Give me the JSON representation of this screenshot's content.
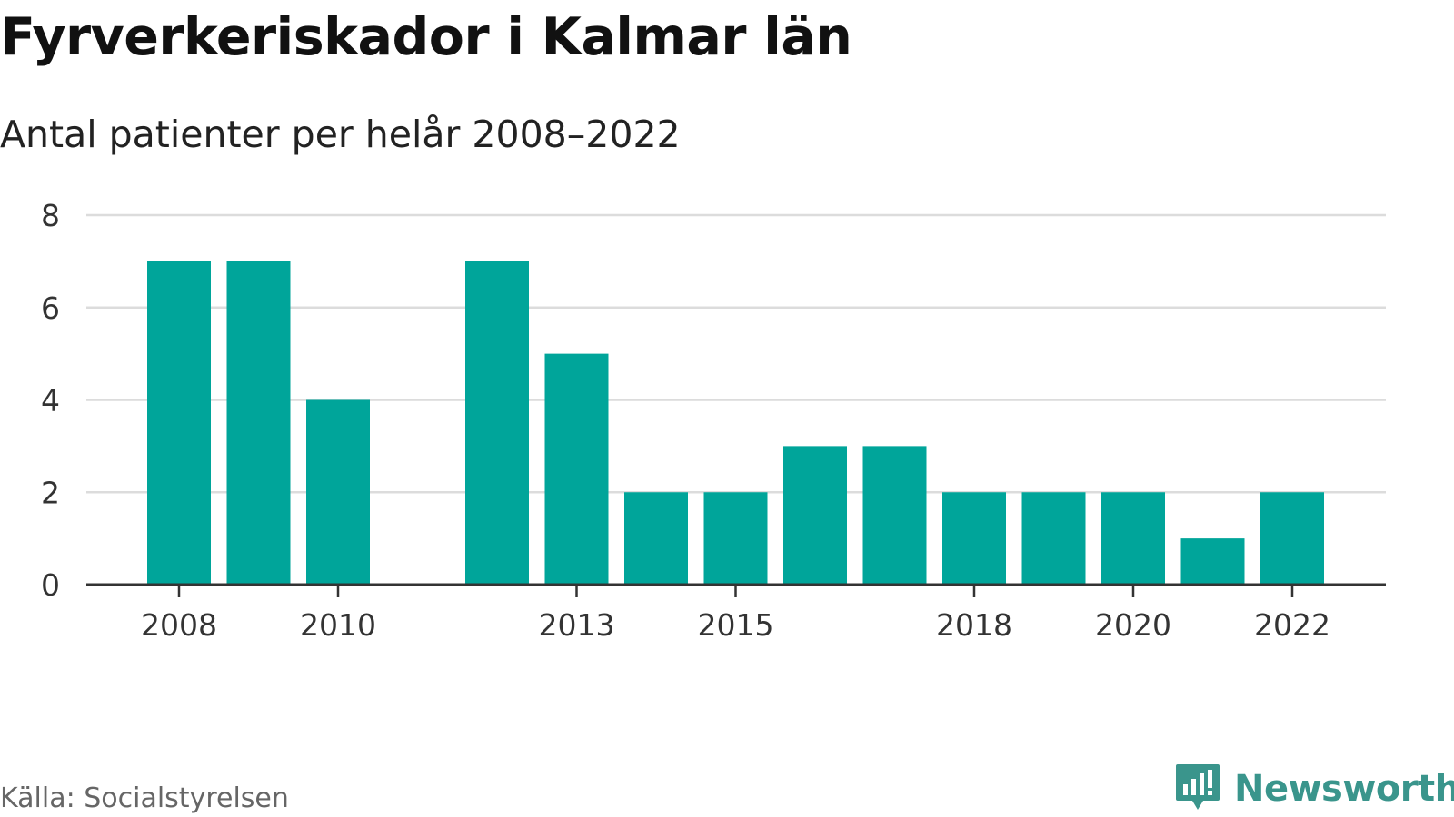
{
  "header": {
    "title": "Fyrverkeriskador i Kalmar län",
    "subtitle": "Antal patienter per helår 2008–2022"
  },
  "footer": {
    "source": "Källa: Socialstyrelsen",
    "brand": "Newsworthy",
    "brand_icon": "bar-chart-speech-bubble-icon"
  },
  "colors": {
    "bar": "#00a59a",
    "grid": "#dcdcdc",
    "axis": "#333333",
    "brand": "#3a958c"
  },
  "chart_data": {
    "type": "bar",
    "categories": [
      "2008",
      "2009",
      "2010",
      "2011",
      "2012",
      "2013",
      "2014",
      "2015",
      "2016",
      "2017",
      "2018",
      "2019",
      "2020",
      "2021",
      "2022"
    ],
    "values": [
      7,
      7,
      4,
      null,
      7,
      5,
      2,
      2,
      3,
      3,
      2,
      2,
      2,
      1,
      2
    ],
    "x_tick_labels": [
      "2008",
      "2010",
      "2013",
      "2015",
      "2018",
      "2020",
      "2022"
    ],
    "y_ticks": [
      0,
      2,
      4,
      6,
      8
    ],
    "ylim": [
      0,
      8
    ],
    "grid": true,
    "legend": "none",
    "title": "Fyrverkeriskador i Kalmar län",
    "subtitle": "Antal patienter per helår 2008–2022",
    "xlabel": "",
    "ylabel": ""
  }
}
